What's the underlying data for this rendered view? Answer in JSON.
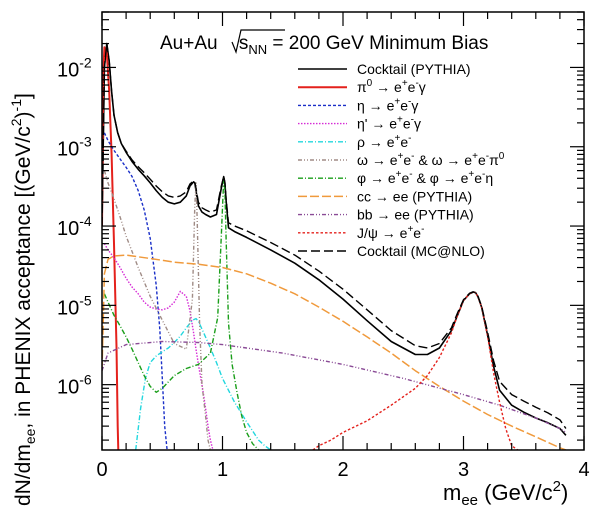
{
  "chart_data": {
    "type": "line",
    "y_scale": "log",
    "xlim": [
      0,
      4
    ],
    "ylim": [
      1.5e-07,
      0.05
    ],
    "x_ticks": [
      "0",
      "1",
      "2",
      "3",
      "4"
    ],
    "y_ticks": [
      "10",
      "10",
      "10",
      "10",
      "10"
    ],
    "y_tick_exponents": [
      "-2",
      "-3",
      "-4",
      "-5",
      "-6"
    ],
    "y_tick_values": [
      0.01,
      0.001,
      0.0001,
      1e-05,
      1e-06
    ],
    "x_tick_values": [
      0,
      1,
      2,
      3,
      4
    ],
    "xlabel": "m",
    "xlabel_sub": "ee",
    "xlabel_rest": " (GeV/c",
    "xlabel_sup": "2",
    "xlabel_end": ")",
    "ylabel_a": "dN/dm",
    "ylabel_sub": "ee",
    "ylabel_b": ", in PHENIX acceptance [(GeV/c",
    "ylabel_sup": "2",
    "ylabel_end": ")",
    "ylabel_sup2": "-1",
    "ylabel_close": "]",
    "title_a": "Au+Au ",
    "title_sqrt": "s",
    "title_sqrt_sub": "NN",
    "title_b": " = 200 GeV Minimum Bias",
    "legend_position": "top-right",
    "series": [
      {
        "name": "Cocktail (PYTHIA)",
        "color": "#000000",
        "dash": "",
        "width": 1.6,
        "x": [
          0.0,
          0.02,
          0.04,
          0.06,
          0.08,
          0.1,
          0.13,
          0.16,
          0.2,
          0.25,
          0.3,
          0.35,
          0.4,
          0.45,
          0.5,
          0.55,
          0.6,
          0.65,
          0.7,
          0.73,
          0.76,
          0.77,
          0.78,
          0.8,
          0.83,
          0.86,
          0.9,
          0.95,
          0.99,
          1.01,
          1.02,
          1.03,
          1.05,
          1.1,
          1.2,
          1.4,
          1.6,
          1.8,
          2.0,
          2.2,
          2.4,
          2.6,
          2.7,
          2.8,
          2.9,
          2.95,
          3.0,
          3.05,
          3.08,
          3.1,
          3.12,
          3.15,
          3.2,
          3.25,
          3.3,
          3.4,
          3.5,
          3.6,
          3.7,
          3.8,
          3.85
        ],
        "y": [
          0.0001,
          0.01,
          0.02,
          0.012,
          0.005,
          0.0025,
          0.0015,
          0.0011,
          0.00085,
          0.00065,
          0.00052,
          0.00043,
          0.00035,
          0.00028,
          0.00023,
          0.0002,
          0.00019,
          0.0002,
          0.00024,
          0.00032,
          0.00036,
          0.00035,
          0.00028,
          0.00018,
          0.00015,
          0.00014,
          0.00013,
          0.00014,
          0.0003,
          0.00042,
          0.00035,
          0.00021,
          9.5e-05,
          8.5e-05,
          7.2e-05,
          5e-05,
          3.4e-05,
          2.1e-05,
          1.2e-05,
          6.4e-06,
          3.5e-06,
          2.4e-06,
          2.4e-06,
          2.9e-06,
          4.8e-06,
          7.5e-06,
          1.15e-05,
          1.4e-05,
          1.47e-05,
          1.45e-05,
          1.28e-05,
          9.5e-06,
          4.2e-06,
          1.7e-06,
          8.5e-07,
          5.5e-07,
          4.5e-07,
          3.8e-07,
          3.3e-07,
          2.8e-07,
          2.3e-07
        ]
      },
      {
        "name": "π0 → e+e-γ",
        "label_parts": [
          "π",
          "0",
          " → e",
          "+",
          "e",
          "-",
          "γ"
        ],
        "color": "#e4211c",
        "dash": "",
        "width": 2,
        "x": [
          0.0,
          0.01,
          0.02,
          0.04,
          0.06,
          0.08,
          0.1,
          0.12,
          0.13,
          0.135
        ],
        "y": [
          0.0001,
          0.008,
          0.018,
          0.015,
          0.005,
          0.0008,
          6e-05,
          3e-06,
          3e-07,
          1.5e-07
        ]
      },
      {
        "name": "η → e+e-γ",
        "label_parts": [
          "η → e",
          "+",
          "e",
          "-",
          "γ",
          "",
          ""
        ],
        "color": "#1a2fc8",
        "dash": "3,2",
        "width": 1.4,
        "x": [
          0.02,
          0.05,
          0.08,
          0.1,
          0.15,
          0.2,
          0.25,
          0.3,
          0.35,
          0.4,
          0.45,
          0.48,
          0.5,
          0.52,
          0.54
        ],
        "y": [
          0.0015,
          0.0012,
          0.001,
          0.0009,
          0.0007,
          0.00055,
          0.00042,
          0.00028,
          0.00016,
          7e-05,
          1.8e-05,
          5e-06,
          1.2e-06,
          3e-07,
          1.5e-07
        ]
      },
      {
        "name": "η' → e+e-γ",
        "label_parts": [
          "η' → e",
          "+",
          "e",
          "-",
          "γ",
          "",
          ""
        ],
        "color": "#d62bd6",
        "dash": "1.5,1.5",
        "width": 1.4,
        "x": [
          0.02,
          0.05,
          0.1,
          0.15,
          0.2,
          0.25,
          0.3,
          0.35,
          0.4,
          0.45,
          0.5,
          0.55,
          0.6,
          0.65,
          0.7,
          0.73,
          0.76,
          0.78,
          0.8,
          0.82,
          0.84,
          0.86,
          0.88,
          0.9,
          0.92,
          0.93
        ],
        "y": [
          6e-05,
          5e-05,
          4e-05,
          3e-05,
          2.2e-05,
          1.7e-05,
          1.4e-05,
          1.1e-05,
          9.5e-06,
          9e-06,
          8.8e-06,
          9.3e-06,
          1.1e-05,
          1.5e-05,
          1.3e-05,
          8.5e-06,
          4.5e-06,
          2.8e-06,
          1.8e-06,
          1.2e-06,
          8e-07,
          5e-07,
          3e-07,
          2e-07,
          1.5e-07,
          1.4e-07
        ]
      },
      {
        "name": "ρ → e+e-",
        "label_parts": [
          "ρ → e",
          "+",
          "e",
          "-",
          "",
          "",
          ""
        ],
        "color": "#22d7de",
        "dash": "5,2,1,2",
        "width": 1.4,
        "x": [
          0.28,
          0.32,
          0.36,
          0.4,
          0.45,
          0.5,
          0.55,
          0.6,
          0.65,
          0.7,
          0.75,
          0.78,
          0.8,
          0.85,
          0.9,
          0.95,
          1.0,
          1.1,
          1.2,
          1.3,
          1.35,
          1.4
        ],
        "y": [
          1.5e-07,
          5e-07,
          1.2e-06,
          1.9e-06,
          2.3e-06,
          2.6e-06,
          2.9e-06,
          3.4e-06,
          4.1e-06,
          5.2e-06,
          6.5e-06,
          6.8e-06,
          6.3e-06,
          4.3e-06,
          2.9e-06,
          1.9e-06,
          1.2e-06,
          6e-07,
          3.4e-07,
          2e-07,
          1.7e-07,
          1.5e-07
        ]
      },
      {
        "name": "ω → e+e- & ω → e+e-π0",
        "label_parts": [
          "ω → e",
          "+",
          "e",
          "-",
          " & ω → e",
          "+",
          "e",
          "-",
          "π",
          "0"
        ],
        "color": "#a08c86",
        "dash": "4,2,1,2,1,2",
        "width": 1.4,
        "x": [
          0.02,
          0.05,
          0.1,
          0.15,
          0.2,
          0.3,
          0.4,
          0.5,
          0.6,
          0.7,
          0.75,
          0.77,
          0.78,
          0.79,
          0.81,
          0.83,
          0.86,
          0.88,
          0.9
        ],
        "y": [
          0.0005,
          0.00035,
          0.00022,
          0.00013,
          7.5e-05,
          3e-05,
          1.3e-05,
          6.5e-06,
          3.3e-06,
          2.8e-06,
          1.2e-05,
          0.00018,
          0.00035,
          0.00012,
          6e-06,
          1e-06,
          4e-07,
          2e-07,
          1.5e-07
        ]
      },
      {
        "name": "φ → e+e- & φ → e+e-η",
        "label_parts": [
          "φ → e",
          "+",
          "e",
          "-",
          " & φ → e",
          "+",
          "e",
          "-",
          "η",
          ""
        ],
        "color": "#1a9e1a",
        "dash": "5,2,1,2",
        "width": 1.4,
        "x": [
          0.02,
          0.05,
          0.1,
          0.15,
          0.2,
          0.25,
          0.3,
          0.35,
          0.4,
          0.45,
          0.5,
          0.6,
          0.7,
          0.8,
          0.9,
          0.96,
          0.99,
          1.01,
          1.02,
          1.03,
          1.05,
          1.08,
          1.12,
          1.16,
          1.2,
          1.25,
          1.3
        ],
        "y": [
          1.4e-05,
          1.1e-05,
          7.5e-06,
          5.5e-06,
          4e-06,
          2.8e-06,
          1.9e-06,
          1.3e-06,
          9.5e-07,
          8e-07,
          9e-07,
          1.3e-06,
          1.6e-06,
          1.8e-06,
          2.5e-06,
          7e-06,
          7.5e-05,
          0.00039,
          0.00028,
          7e-05,
          6e-06,
          1.8e-06,
          8e-07,
          4e-07,
          2.5e-07,
          1.8e-07,
          1.5e-07
        ]
      },
      {
        "name": "cc → ee (PYTHIA)",
        "label_parts": [
          "cc → ee (PYTHIA)",
          "",
          "",
          "",
          "",
          "",
          ""
        ],
        "color": "#f09a3c",
        "dash": "9,3",
        "width": 1.5,
        "x": [
          0.0,
          0.02,
          0.05,
          0.1,
          0.2,
          0.3,
          0.4,
          0.5,
          0.6,
          0.8,
          1.0,
          1.2,
          1.4,
          1.6,
          1.8,
          2.0,
          2.2,
          2.4,
          2.6,
          2.8,
          3.0,
          3.2,
          3.4,
          3.6,
          3.8,
          3.85
        ],
        "y": [
          1.5e-06,
          2.5e-05,
          3.8e-05,
          4.2e-05,
          4.3e-05,
          4.1e-05,
          3.9e-05,
          3.7e-05,
          3.5e-05,
          3.3e-05,
          3e-05,
          2.5e-05,
          1.9e-05,
          1.4e-05,
          9.5e-06,
          6.3e-06,
          4e-06,
          2.5e-06,
          1.5e-06,
          9.5e-07,
          6.2e-07,
          4.2e-07,
          3e-07,
          2.2e-07,
          1.6e-07,
          1.5e-07
        ]
      },
      {
        "name": "bb → ee (PYTHIA)",
        "label_parts": [
          "bb → ee (PYTHIA)",
          "",
          "",
          "",
          "",
          "",
          ""
        ],
        "color": "#8a4b96",
        "dash": "4,2,1,2,1,2",
        "width": 1.4,
        "x": [
          0.0,
          0.05,
          0.2,
          0.5,
          0.8,
          1.0,
          1.2,
          1.5,
          2.0,
          2.5,
          3.0,
          3.3,
          3.6,
          3.8,
          3.85
        ],
        "y": [
          1.5e-06,
          2.5e-06,
          3.2e-06,
          3.5e-06,
          3.4e-06,
          3.2e-06,
          2.9e-06,
          2.5e-06,
          1.8e-06,
          1.2e-06,
          7.5e-07,
          5.5e-07,
          3.8e-07,
          2.8e-07,
          2.5e-07
        ]
      },
      {
        "name": "J/ψ → e+e-",
        "label_parts": [
          "J/ψ → e",
          "+",
          "e",
          "-",
          "",
          "",
          ""
        ],
        "color": "#e4211c",
        "dash": "2.5,2",
        "width": 1.4,
        "x": [
          1.75,
          1.8,
          1.9,
          2.0,
          2.2,
          2.4,
          2.6,
          2.7,
          2.8,
          2.9,
          2.95,
          3.0,
          3.05,
          3.08,
          3.1,
          3.12,
          3.15,
          3.2,
          3.25,
          3.3,
          3.35,
          3.4,
          3.45
        ],
        "y": [
          1.5e-07,
          1.7e-07,
          2e-07,
          2.5e-07,
          3.5e-07,
          5.5e-07,
          9e-07,
          1.3e-06,
          2.2e-06,
          4.5e-06,
          7.5e-06,
          1.15e-05,
          1.4e-05,
          1.47e-05,
          1.45e-05,
          1.28e-05,
          9.5e-06,
          4.1e-06,
          1.4e-06,
          6e-07,
          2.8e-07,
          1.7e-07,
          1.5e-07
        ]
      },
      {
        "name": "Cocktail (MC@NLO)",
        "color": "#000000",
        "dash": "9,4",
        "width": 1.4,
        "x": [
          0.0,
          0.02,
          0.04,
          0.06,
          0.08,
          0.1,
          0.13,
          0.16,
          0.2,
          0.25,
          0.3,
          0.35,
          0.4,
          0.45,
          0.5,
          0.55,
          0.6,
          0.65,
          0.7,
          0.73,
          0.76,
          0.77,
          0.78,
          0.8,
          0.83,
          0.86,
          0.9,
          0.95,
          0.99,
          1.01,
          1.02,
          1.03,
          1.05,
          1.1,
          1.2,
          1.4,
          1.6,
          1.8,
          2.0,
          2.2,
          2.4,
          2.6,
          2.7,
          2.8,
          2.9,
          2.95,
          3.0,
          3.05,
          3.08,
          3.1,
          3.12,
          3.15,
          3.2,
          3.25,
          3.3,
          3.4,
          3.5,
          3.6,
          3.7,
          3.8,
          3.85
        ],
        "y": [
          0.0001,
          0.01,
          0.02,
          0.012,
          0.005,
          0.0025,
          0.0015,
          0.0011,
          0.00088,
          0.00068,
          0.00056,
          0.00047,
          0.00039,
          0.00032,
          0.00027,
          0.00024,
          0.00023,
          0.00024,
          0.00027,
          0.00034,
          0.00037,
          0.00036,
          0.0003,
          0.0002,
          0.00017,
          0.00016,
          0.00015,
          0.00016,
          0.00032,
          0.00042,
          0.00035,
          0.00022,
          0.00011,
          0.0001,
          8.7e-05,
          6.2e-05,
          4.3e-05,
          2.7e-05,
          1.6e-05,
          8.8e-06,
          4.8e-06,
          3.1e-06,
          2.9e-06,
          3.3e-06,
          5.2e-06,
          8e-06,
          1.18e-05,
          1.42e-05,
          1.48e-05,
          1.45e-05,
          1.3e-05,
          9.8e-06,
          4.6e-06,
          2e-06,
          1.1e-06,
          7.5e-07,
          6.2e-07,
          5.2e-07,
          4.4e-07,
          3.6e-07,
          2.8e-07
        ]
      }
    ]
  }
}
